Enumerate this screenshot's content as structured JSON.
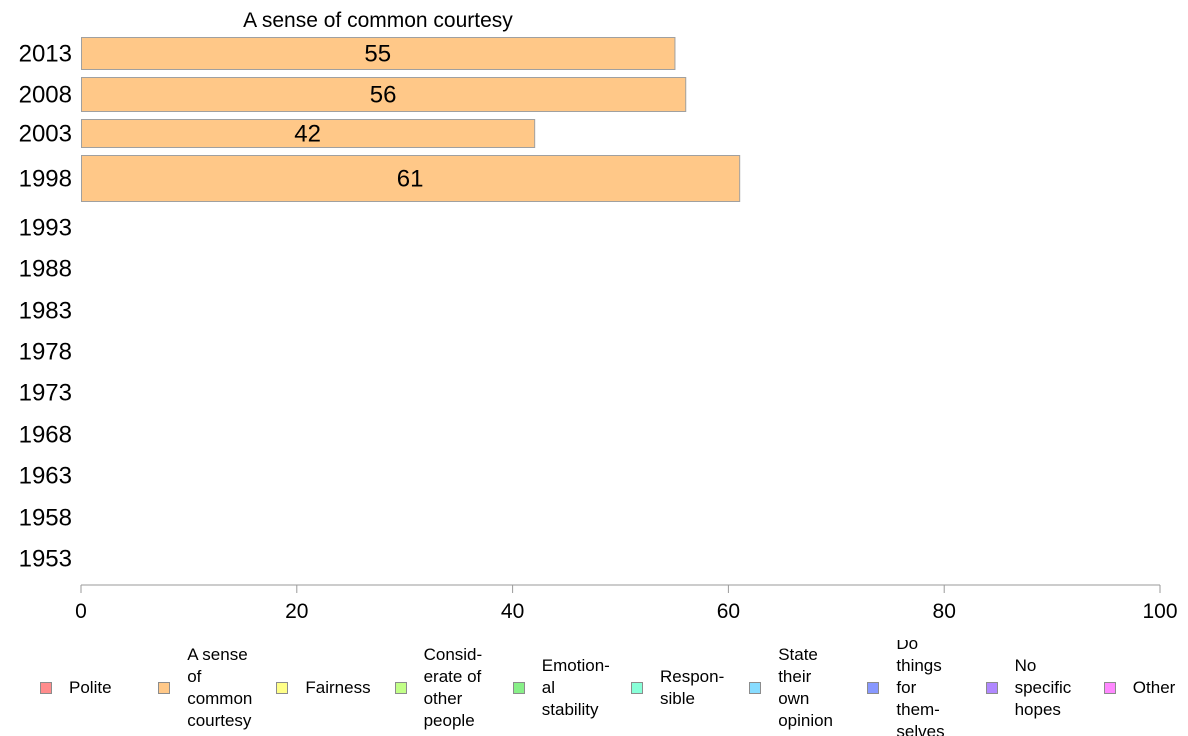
{
  "chart_data": {
    "type": "bar",
    "orientation": "horizontal",
    "title": "A sense of common courtesy",
    "categories": [
      "2013",
      "2008",
      "2003",
      "1998",
      "1993",
      "1988",
      "1983",
      "1978",
      "1973",
      "1968",
      "1963",
      "1958",
      "1953"
    ],
    "series": [
      {
        "name": "A sense of common courtesy",
        "color": "#ffc888",
        "values": [
          55,
          56,
          42,
          61,
          null,
          null,
          null,
          null,
          null,
          null,
          null,
          null,
          null
        ],
        "labels": [
          "55",
          "56",
          "42",
          "61"
        ]
      }
    ],
    "xlim": [
      0,
      100
    ],
    "xticks": [
      "0",
      "20",
      "40",
      "60",
      "80",
      "100"
    ],
    "legend_position": "bottom",
    "legend": [
      {
        "label": "Polite",
        "color": "#ff8c8c"
      },
      {
        "label": "A sense\nof\ncommon\ncourtesy",
        "color": "#ffc888"
      },
      {
        "label": "Fairness",
        "color": "#ffff88"
      },
      {
        "label": "Consid-\nerate of\nother\npeople",
        "color": "#c2ff88"
      },
      {
        "label": "Emotion-\nal\nstability",
        "color": "#88f088"
      },
      {
        "label": "Respon-\nsible",
        "color": "#88ffd8"
      },
      {
        "label": "State\ntheir\nown\nopinion",
        "color": "#88dcff"
      },
      {
        "label": "Do\nthings\nfor\nthem-\nselves",
        "color": "#8898ff"
      },
      {
        "label": "No\nspecific\nhopes",
        "color": "#b088ff"
      },
      {
        "label": "Other",
        "color": "#ff88ff"
      }
    ]
  }
}
